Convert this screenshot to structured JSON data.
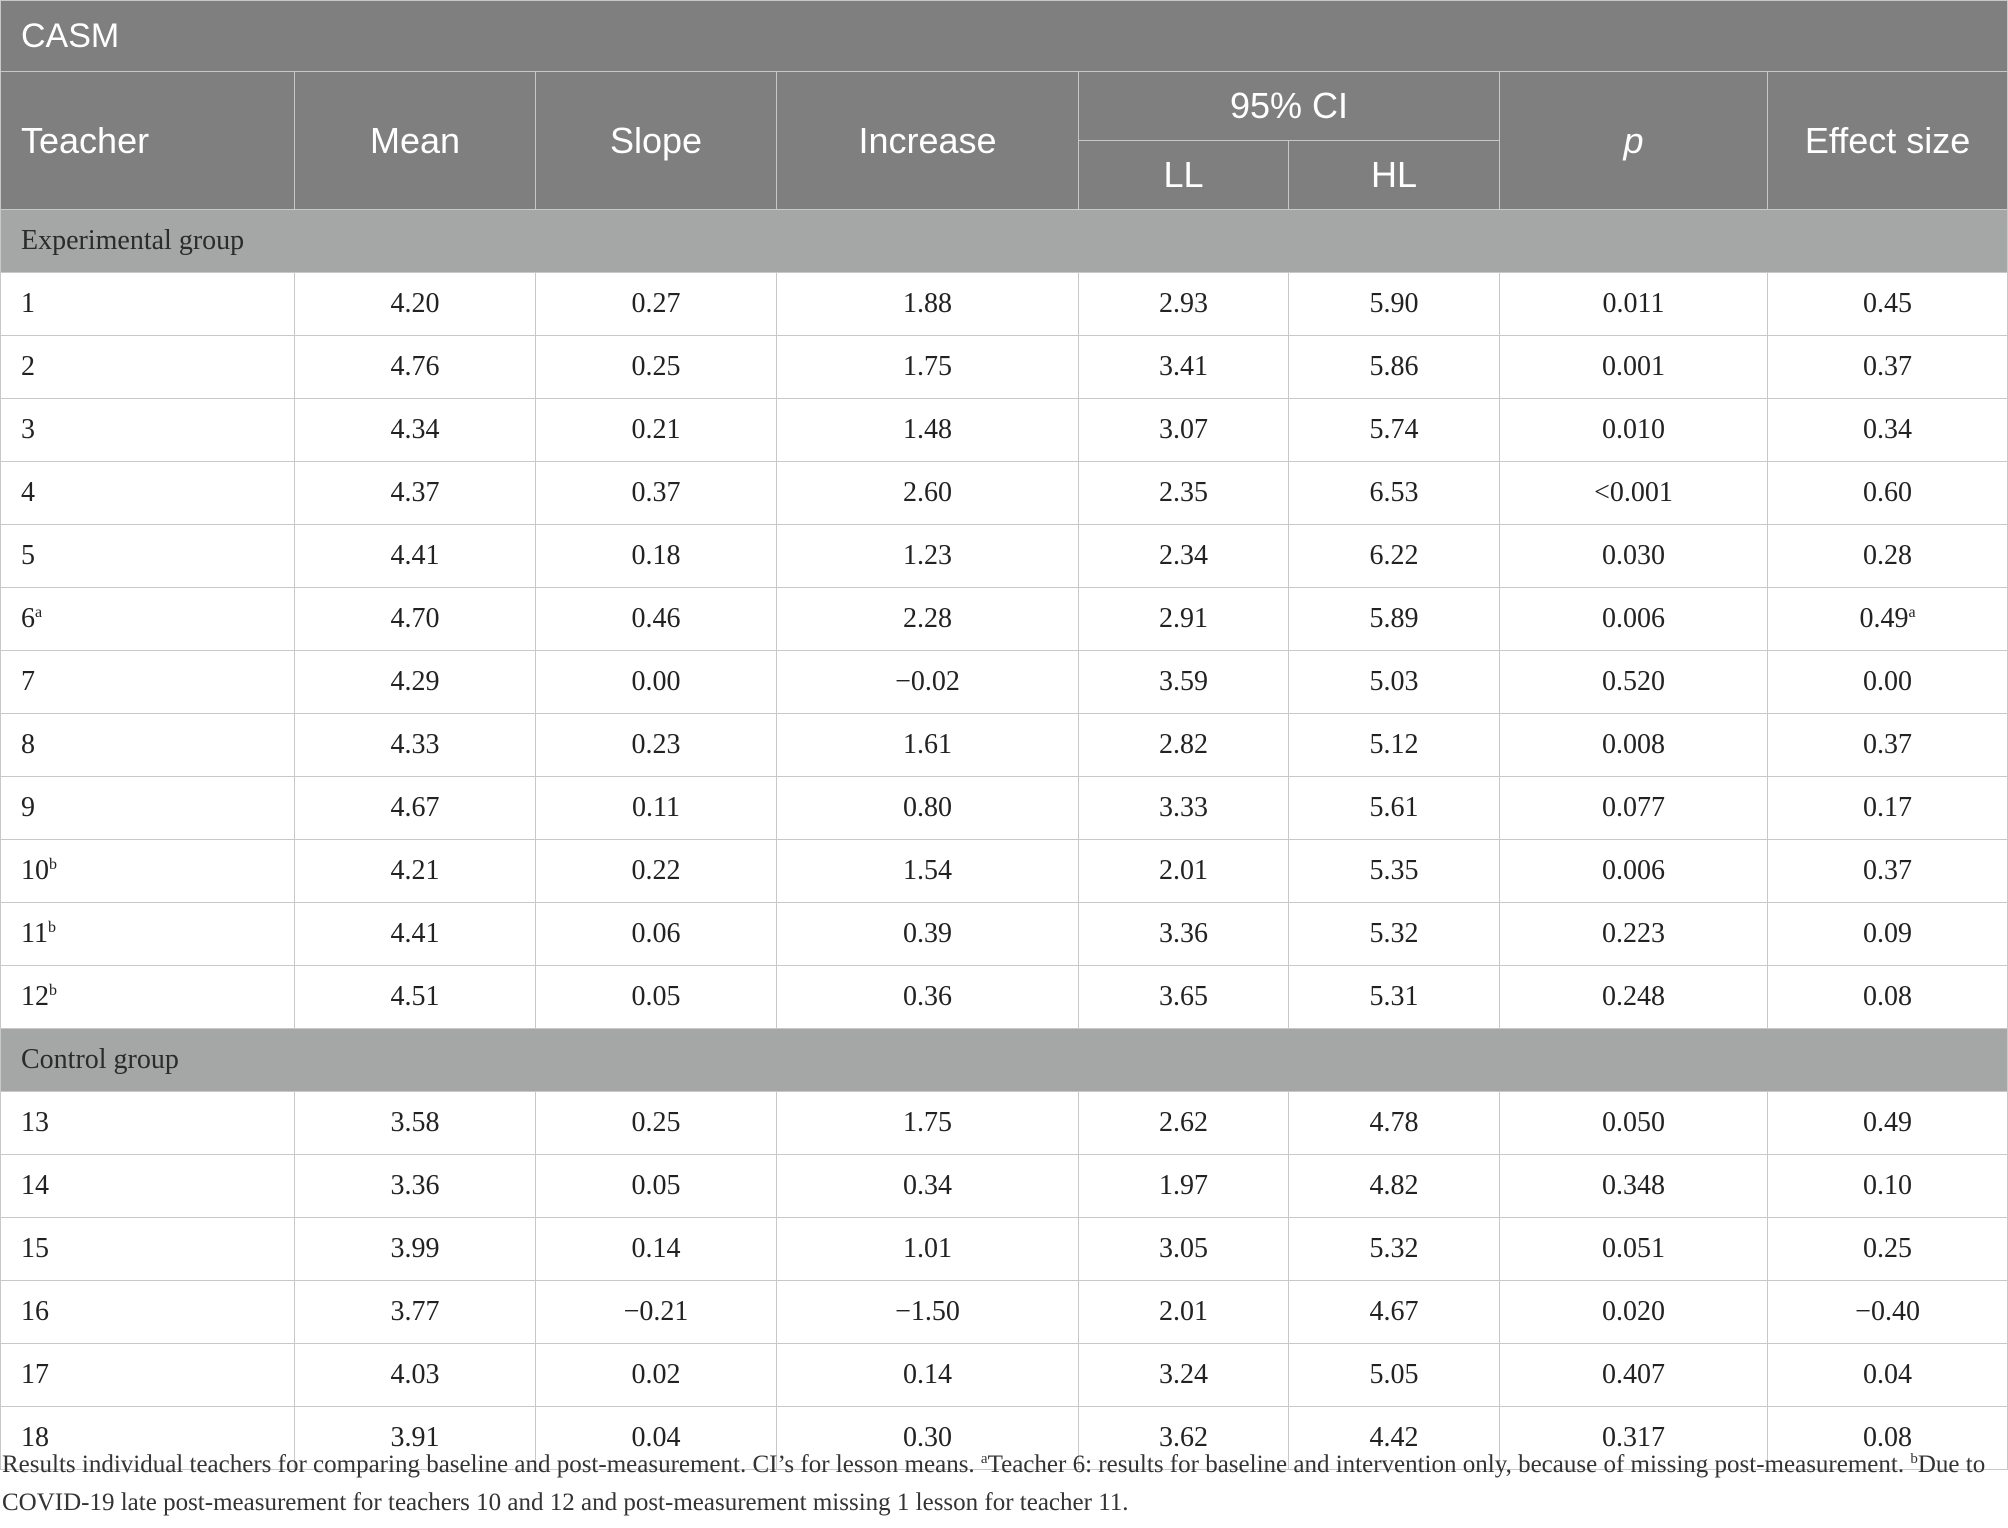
{
  "title": "CASM",
  "headers": {
    "teacher": "Teacher",
    "mean": "Mean",
    "slope": "Slope",
    "increase": "Increase",
    "ci": "95% CI",
    "ll": "LL",
    "hl": "HL",
    "p": "p",
    "effect": "Effect size"
  },
  "groups": [
    {
      "label": "Experimental group",
      "rows": [
        {
          "teacher": "1",
          "sup": "",
          "mean": "4.20",
          "slope": "0.27",
          "increase": "1.88",
          "ll": "2.93",
          "hl": "5.90",
          "p": "0.011",
          "effect": "0.45",
          "effect_sup": ""
        },
        {
          "teacher": "2",
          "sup": "",
          "mean": "4.76",
          "slope": "0.25",
          "increase": "1.75",
          "ll": "3.41",
          "hl": "5.86",
          "p": "0.001",
          "effect": "0.37",
          "effect_sup": ""
        },
        {
          "teacher": "3",
          "sup": "",
          "mean": "4.34",
          "slope": "0.21",
          "increase": "1.48",
          "ll": "3.07",
          "hl": "5.74",
          "p": "0.010",
          "effect": "0.34",
          "effect_sup": ""
        },
        {
          "teacher": "4",
          "sup": "",
          "mean": "4.37",
          "slope": "0.37",
          "increase": "2.60",
          "ll": "2.35",
          "hl": "6.53",
          "p": "<0.001",
          "effect": "0.60",
          "effect_sup": ""
        },
        {
          "teacher": "5",
          "sup": "",
          "mean": "4.41",
          "slope": "0.18",
          "increase": "1.23",
          "ll": "2.34",
          "hl": "6.22",
          "p": "0.030",
          "effect": "0.28",
          "effect_sup": ""
        },
        {
          "teacher": "6",
          "sup": "a",
          "mean": "4.70",
          "slope": "0.46",
          "increase": "2.28",
          "ll": "2.91",
          "hl": "5.89",
          "p": "0.006",
          "effect": "0.49",
          "effect_sup": "a"
        },
        {
          "teacher": "7",
          "sup": "",
          "mean": "4.29",
          "slope": "0.00",
          "increase": "−0.02",
          "ll": "3.59",
          "hl": "5.03",
          "p": "0.520",
          "effect": "0.00",
          "effect_sup": ""
        },
        {
          "teacher": "8",
          "sup": "",
          "mean": "4.33",
          "slope": "0.23",
          "increase": "1.61",
          "ll": "2.82",
          "hl": "5.12",
          "p": "0.008",
          "effect": "0.37",
          "effect_sup": ""
        },
        {
          "teacher": "9",
          "sup": "",
          "mean": "4.67",
          "slope": "0.11",
          "increase": "0.80",
          "ll": "3.33",
          "hl": "5.61",
          "p": "0.077",
          "effect": "0.17",
          "effect_sup": ""
        },
        {
          "teacher": "10",
          "sup": "b",
          "mean": "4.21",
          "slope": "0.22",
          "increase": "1.54",
          "ll": "2.01",
          "hl": "5.35",
          "p": "0.006",
          "effect": "0.37",
          "effect_sup": ""
        },
        {
          "teacher": "11",
          "sup": "b",
          "mean": "4.41",
          "slope": "0.06",
          "increase": "0.39",
          "ll": "3.36",
          "hl": "5.32",
          "p": "0.223",
          "effect": "0.09",
          "effect_sup": ""
        },
        {
          "teacher": "12",
          "sup": "b",
          "mean": "4.51",
          "slope": "0.05",
          "increase": "0.36",
          "ll": "3.65",
          "hl": "5.31",
          "p": "0.248",
          "effect": "0.08",
          "effect_sup": ""
        }
      ]
    },
    {
      "label": "Control group",
      "rows": [
        {
          "teacher": "13",
          "sup": "",
          "mean": "3.58",
          "slope": "0.25",
          "increase": "1.75",
          "ll": "2.62",
          "hl": "4.78",
          "p": "0.050",
          "effect": "0.49",
          "effect_sup": ""
        },
        {
          "teacher": "14",
          "sup": "",
          "mean": "3.36",
          "slope": "0.05",
          "increase": "0.34",
          "ll": "1.97",
          "hl": "4.82",
          "p": "0.348",
          "effect": "0.10",
          "effect_sup": ""
        },
        {
          "teacher": "15",
          "sup": "",
          "mean": "3.99",
          "slope": "0.14",
          "increase": "1.01",
          "ll": "3.05",
          "hl": "5.32",
          "p": "0.051",
          "effect": "0.25",
          "effect_sup": ""
        },
        {
          "teacher": "16",
          "sup": "",
          "mean": "3.77",
          "slope": "−0.21",
          "increase": "−1.50",
          "ll": "2.01",
          "hl": "4.67",
          "p": "0.020",
          "effect": "−0.40",
          "effect_sup": ""
        },
        {
          "teacher": "17",
          "sup": "",
          "mean": "4.03",
          "slope": "0.02",
          "increase": "0.14",
          "ll": "3.24",
          "hl": "5.05",
          "p": "0.407",
          "effect": "0.04",
          "effect_sup": ""
        },
        {
          "teacher": "18",
          "sup": "",
          "mean": "3.91",
          "slope": "0.04",
          "increase": "0.30",
          "ll": "3.62",
          "hl": "4.42",
          "p": "0.317",
          "effect": "0.08",
          "effect_sup": ""
        }
      ]
    }
  ],
  "footnote": {
    "text1": "Results individual teachers for comparing baseline and post-measurement. CI’s for lesson means. ",
    "sup_a": "a",
    "text2": "Teacher 6: results for baseline and intervention only, because of missing post-measurement. ",
    "sup_b": "b",
    "text3": "Due to COVID-19 late post-measurement for teachers 10 and 12 and post-measurement missing 1 lesson for teacher 11."
  }
}
